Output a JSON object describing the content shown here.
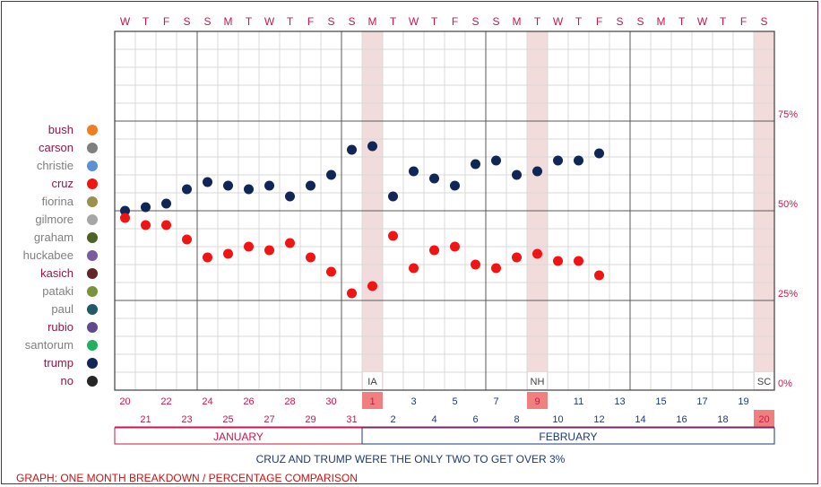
{
  "legend": [
    {
      "name": "bush",
      "color": "#ef7d22",
      "highlight": true
    },
    {
      "name": "carson",
      "color": "#7f7f7f",
      "highlight": true
    },
    {
      "name": "christie",
      "color": "#5b8fd6",
      "highlight": false
    },
    {
      "name": "cruz",
      "color": "#f01414",
      "highlight": true
    },
    {
      "name": "fiorina",
      "color": "#9a9050",
      "highlight": false
    },
    {
      "name": "gilmore",
      "color": "#a6a6a6",
      "highlight": false
    },
    {
      "name": "graham",
      "color": "#4e6228",
      "highlight": false
    },
    {
      "name": "huckabee",
      "color": "#7a5ba0",
      "highlight": false
    },
    {
      "name": "kasich",
      "color": "#632523",
      "highlight": true
    },
    {
      "name": "pataki",
      "color": "#77933c",
      "highlight": false
    },
    {
      "name": "paul",
      "color": "#215967",
      "highlight": false
    },
    {
      "name": "rubio",
      "color": "#5f4b8b",
      "highlight": true
    },
    {
      "name": "santorum",
      "color": "#20b060",
      "highlight": false
    },
    {
      "name": "trump",
      "color": "#0f2656",
      "highlight": true
    },
    {
      "name": "no",
      "color": "#262626",
      "highlight": true
    }
  ],
  "colors": {
    "highlight_text": "#8b1a4a",
    "muted_text": "#7f7f7f",
    "accent": "#c8174a",
    "event_band": "#f2dcdb",
    "event_cell": "#f08080",
    "navy": "#1f3a70"
  },
  "chart_data": {
    "type": "scatter",
    "title": "",
    "weekday_labels": [
      "W",
      "T",
      "F",
      "S",
      "S",
      "M",
      "T",
      "W",
      "T",
      "F",
      "S",
      "S",
      "M",
      "T",
      "W",
      "T",
      "F",
      "S",
      "S",
      "M",
      "T",
      "W",
      "T",
      "F",
      "S",
      "S",
      "M",
      "T",
      "W",
      "T",
      "F",
      "S"
    ],
    "date_labels": [
      20,
      21,
      22,
      23,
      24,
      25,
      26,
      27,
      28,
      29,
      30,
      31,
      1,
      2,
      3,
      4,
      5,
      6,
      7,
      8,
      9,
      10,
      11,
      12,
      13,
      14,
      15,
      16,
      17,
      18,
      19,
      20
    ],
    "months": [
      {
        "name": "JANUARY",
        "start": 0,
        "end": 11
      },
      {
        "name": "FEBRUARY",
        "start": 12,
        "end": 31
      }
    ],
    "y_ticks": [
      "0%",
      "25%",
      "50%",
      "75%"
    ],
    "ylim": [
      0,
      100
    ],
    "events": [
      {
        "label": "IA",
        "day_index": 12
      },
      {
        "label": "NH",
        "day_index": 20
      },
      {
        "label": "SC",
        "day_index": 31
      }
    ],
    "series": [
      {
        "name": "trump",
        "color": "#0f2656",
        "points": [
          [
            0,
            50
          ],
          [
            1,
            51
          ],
          [
            2,
            52
          ],
          [
            3,
            56
          ],
          [
            4,
            58
          ],
          [
            5,
            57
          ],
          [
            6,
            56
          ],
          [
            7,
            57
          ],
          [
            8,
            54
          ],
          [
            9,
            57
          ],
          [
            10,
            60
          ],
          [
            11,
            67
          ],
          [
            12,
            68
          ],
          [
            13,
            54
          ],
          [
            14,
            61
          ],
          [
            15,
            59
          ],
          [
            16,
            57
          ],
          [
            17,
            63
          ],
          [
            18,
            64
          ],
          [
            19,
            60
          ],
          [
            20,
            61
          ],
          [
            21,
            64
          ],
          [
            22,
            64
          ],
          [
            23,
            66
          ]
        ]
      },
      {
        "name": "cruz",
        "color": "#f01414",
        "points": [
          [
            0,
            48
          ],
          [
            1,
            46
          ],
          [
            2,
            46
          ],
          [
            3,
            42
          ],
          [
            4,
            37
          ],
          [
            5,
            38
          ],
          [
            6,
            40
          ],
          [
            7,
            39
          ],
          [
            8,
            41
          ],
          [
            9,
            37
          ],
          [
            10,
            33
          ],
          [
            11,
            27
          ],
          [
            12,
            29
          ],
          [
            13,
            43
          ],
          [
            14,
            34
          ],
          [
            15,
            39
          ],
          [
            16,
            40
          ],
          [
            17,
            35
          ],
          [
            18,
            34
          ],
          [
            19,
            37
          ],
          [
            20,
            38
          ],
          [
            21,
            36
          ],
          [
            22,
            36
          ],
          [
            23,
            32
          ]
        ]
      }
    ]
  },
  "caption": "CRUZ AND TRUMP WERE THE ONLY TWO TO GET OVER 3%",
  "footer": "GRAPH: ONE MONTH BREAKDOWN / PERCENTAGE COMPARISON"
}
